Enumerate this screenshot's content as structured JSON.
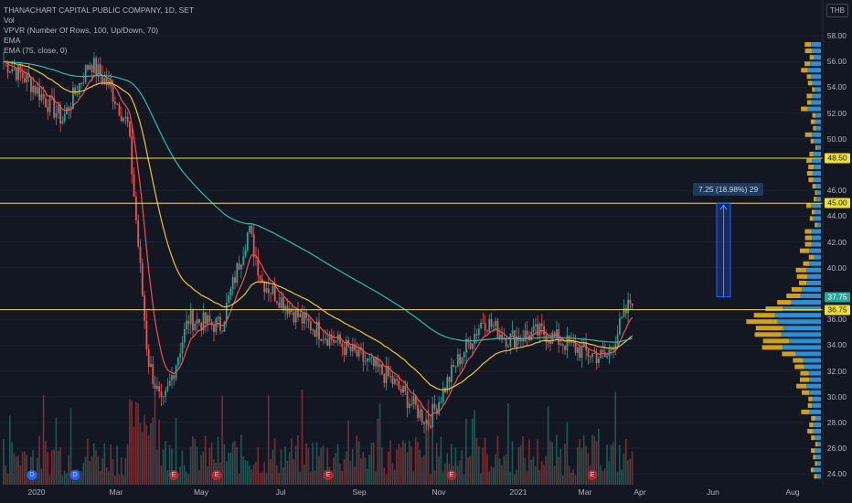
{
  "legend": {
    "title": "THANACHART CAPITAL PUBLIC COMPANY, 1D, SET",
    "vol": "Vol",
    "vpvr": "VPVR (Number Of Rows, 100, Up/Down, 70)",
    "ema1": "EMA",
    "ema2": "EMA (75, close, 0)"
  },
  "currency": "THB",
  "y_axis": [
    {
      "v": 58,
      "t": "58.00"
    },
    {
      "v": 56,
      "t": "56.00"
    },
    {
      "v": 54,
      "t": "54.00"
    },
    {
      "v": 52,
      "t": "52.00"
    },
    {
      "v": 50,
      "t": "50.00"
    },
    {
      "v": 46,
      "t": "46.00"
    },
    {
      "v": 44,
      "t": "44.00"
    },
    {
      "v": 42,
      "t": "42.00"
    },
    {
      "v": 40,
      "t": "40.00"
    },
    {
      "v": 36,
      "t": "36.00"
    },
    {
      "v": 34,
      "t": "34.00"
    },
    {
      "v": 32,
      "t": "32.00"
    },
    {
      "v": 30,
      "t": "30.00"
    },
    {
      "v": 28,
      "t": "28.00"
    },
    {
      "v": 26,
      "t": "26.00"
    },
    {
      "v": 24,
      "t": "24.00"
    }
  ],
  "x_axis": [
    "2020",
    "Mar",
    "May",
    "Jul",
    "Sep",
    "Nov",
    "2021",
    "Mar",
    "Apr",
    "Jun",
    "Aug"
  ],
  "price_tags": [
    {
      "v": 48.5,
      "t": "48.50",
      "style": "yellow"
    },
    {
      "v": 45.0,
      "t": "45.00",
      "style": "yellow"
    },
    {
      "v": 37.75,
      "t": "37.75",
      "style": "green"
    },
    {
      "v": 36.75,
      "t": "36.75",
      "style": "yellow"
    }
  ],
  "horizontal_levels": [
    48.5,
    45.0,
    36.75
  ],
  "measure": {
    "label": "7.25 (18.98%) 29",
    "from": 37.75,
    "to": 45.0
  },
  "events": [
    "D",
    "D",
    "E",
    "E",
    "E",
    "E",
    "E"
  ],
  "colors": {
    "background": "#131722",
    "up": "#26a69a",
    "down": "#ef5350",
    "level": "#f0e130",
    "ema_short": "#ef5350",
    "ema_mid": "#f0c430",
    "ema_long": "#2ebbb0",
    "vp_up": "#2a8fd6",
    "vp_down": "#d4a017",
    "measure": "#2962ff"
  },
  "chart_data": {
    "type": "candlestick",
    "title": "THANACHART CAPITAL PUBLIC COMPANY, 1D, SET",
    "y_unit": "THB",
    "ylim": [
      23.5,
      59
    ],
    "keypoints": [
      {
        "date": "2019-12-01",
        "price": 56.0
      },
      {
        "date": "2019-12-20",
        "price": 54.5
      },
      {
        "date": "2020-01-15",
        "price": 51.5
      },
      {
        "date": "2020-02-05",
        "price": 56.0
      },
      {
        "date": "2020-02-20",
        "price": 54.0
      },
      {
        "date": "2020-03-05",
        "price": 51.0
      },
      {
        "date": "2020-03-20",
        "price": 33.0
      },
      {
        "date": "2020-03-31",
        "price": 29.0
      },
      {
        "date": "2020-04-20",
        "price": 36.0
      },
      {
        "date": "2020-05-15",
        "price": 35.5
      },
      {
        "date": "2020-06-05",
        "price": 43.0
      },
      {
        "date": "2020-06-15",
        "price": 39.0
      },
      {
        "date": "2020-07-15",
        "price": 36.0
      },
      {
        "date": "2020-08-15",
        "price": 34.0
      },
      {
        "date": "2020-09-20",
        "price": 31.5
      },
      {
        "date": "2020-10-20",
        "price": 28.0
      },
      {
        "date": "2020-11-10",
        "price": 32.5
      },
      {
        "date": "2020-12-01",
        "price": 36.0
      },
      {
        "date": "2020-12-20",
        "price": 34.5
      },
      {
        "date": "2021-01-15",
        "price": 35.0
      },
      {
        "date": "2021-02-15",
        "price": 33.5
      },
      {
        "date": "2021-03-05",
        "price": 33.0
      },
      {
        "date": "2021-03-25",
        "price": 37.75
      }
    ],
    "ema_short_level": 35.5,
    "ema_long_level": 34.4,
    "volume_profile_peak_price": 35.5
  }
}
